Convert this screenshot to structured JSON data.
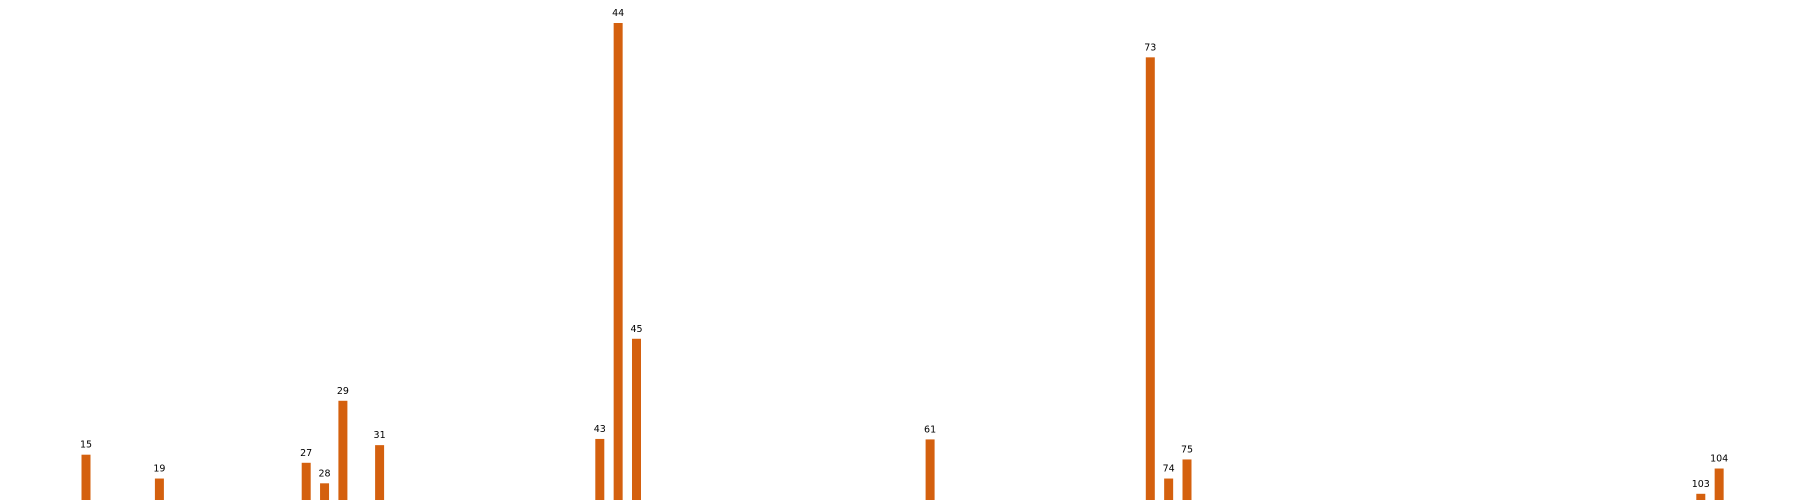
{
  "chart_data": {
    "type": "bar",
    "title": "",
    "xlabel": "",
    "ylabel": "",
    "axes_visible": false,
    "grid": false,
    "legend": "none",
    "colors": {
      "bar": "#D4600E",
      "label": "#000000",
      "background": "#FFFFFF"
    },
    "x_range": [
      0,
      112
    ],
    "ylim": [
      0,
      100
    ],
    "bars": [
      {
        "label": "15",
        "x": 15,
        "value": 9.5
      },
      {
        "label": "19",
        "x": 19,
        "value": 4.5
      },
      {
        "label": "27",
        "x": 27,
        "value": 7.8
      },
      {
        "label": "28",
        "x": 28,
        "value": 3.5
      },
      {
        "label": "29",
        "x": 29,
        "value": 20.8
      },
      {
        "label": "31",
        "x": 31,
        "value": 11.5
      },
      {
        "label": "43",
        "x": 43,
        "value": 12.8
      },
      {
        "label": "44",
        "x": 44,
        "value": 100
      },
      {
        "label": "45",
        "x": 45,
        "value": 33.8
      },
      {
        "label": "61",
        "x": 61,
        "value": 12.7
      },
      {
        "label": "73",
        "x": 73,
        "value": 92.8
      },
      {
        "label": "74",
        "x": 74,
        "value": 4.5
      },
      {
        "label": "75",
        "x": 75,
        "value": 8.5
      },
      {
        "label": "103",
        "x": 103,
        "value": 1.3
      },
      {
        "label": "104",
        "x": 104,
        "value": 6.6
      }
    ]
  }
}
